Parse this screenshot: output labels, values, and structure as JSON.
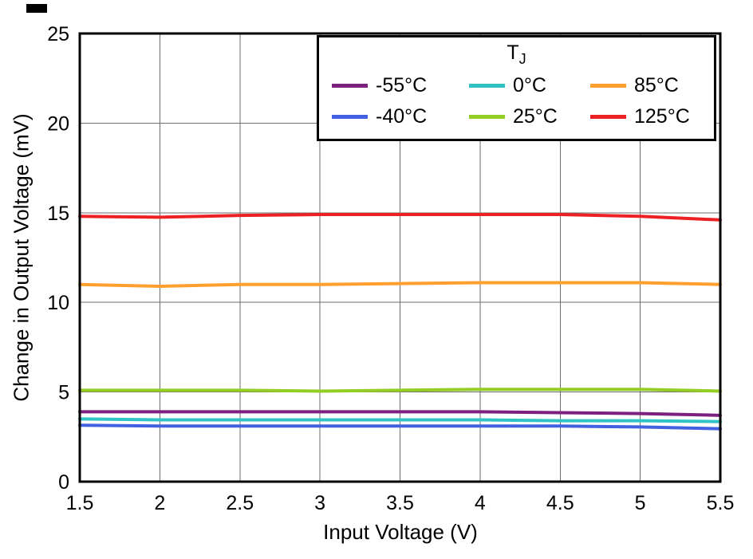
{
  "page": {
    "background": "#ffffff"
  },
  "chart_data": {
    "type": "line",
    "title": "",
    "xlabel": "Input Voltage (V)",
    "ylabel": "Change in Output Voltage (mV)",
    "xlim": [
      1.5,
      5.5
    ],
    "ylim": [
      0,
      25
    ],
    "xticks": [
      1.5,
      2,
      2.5,
      3,
      3.5,
      4,
      4.5,
      5,
      5.5
    ],
    "yticks": [
      0,
      5,
      10,
      15,
      20,
      25
    ],
    "grid": true,
    "grid_color": "#6e6e6e",
    "frame_color": "#000000",
    "legend": {
      "title": "TJ",
      "title_main": "T",
      "title_sub": "J",
      "position": "top-right",
      "rows": 2,
      "columns": 3,
      "fill_order": "column-major"
    },
    "x": [
      1.5,
      2,
      2.5,
      3,
      3.5,
      4,
      4.5,
      5,
      5.5
    ],
    "series": [
      {
        "name": "-55°C",
        "color": "#7D2181",
        "values": [
          3.9,
          3.9,
          3.9,
          3.9,
          3.9,
          3.9,
          3.85,
          3.8,
          3.7
        ]
      },
      {
        "name": "-40°C",
        "color": "#4161E0",
        "values": [
          3.15,
          3.1,
          3.1,
          3.1,
          3.1,
          3.1,
          3.1,
          3.05,
          2.95
        ]
      },
      {
        "name": "0°C",
        "color": "#2FC3C6",
        "values": [
          3.5,
          3.45,
          3.45,
          3.45,
          3.45,
          3.45,
          3.4,
          3.4,
          3.35
        ]
      },
      {
        "name": "25°C",
        "color": "#94CD23",
        "values": [
          5.1,
          5.1,
          5.1,
          5.05,
          5.1,
          5.15,
          5.15,
          5.15,
          5.05
        ]
      },
      {
        "name": "85°C",
        "color": "#FFA02E",
        "values": [
          11.0,
          10.9,
          11.0,
          11.0,
          11.05,
          11.1,
          11.1,
          11.1,
          11.0
        ]
      },
      {
        "name": "125°C",
        "color": "#ED2024",
        "values": [
          14.8,
          14.75,
          14.85,
          14.9,
          14.9,
          14.9,
          14.9,
          14.8,
          14.6
        ]
      }
    ]
  }
}
